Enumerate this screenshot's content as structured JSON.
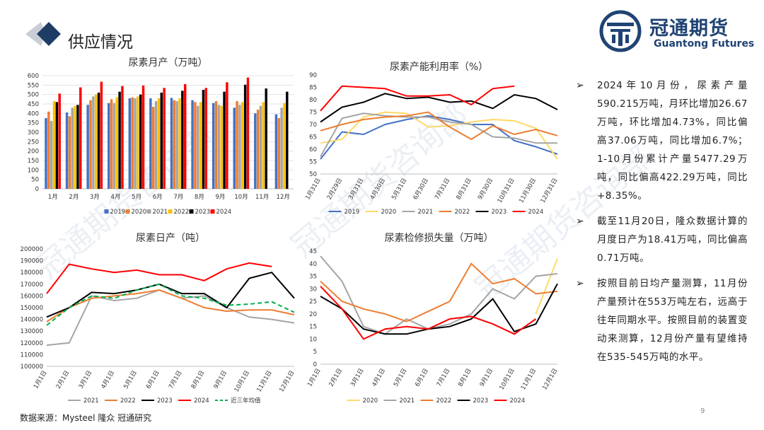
{
  "page": {
    "title": "供应情况",
    "logo_cn": "冠通期货",
    "logo_en": "Guantong Futures",
    "source_note": "数据来源：Mysteel 隆众 冠通研究",
    "page_number": "9",
    "watermark": "冠通期货咨询部",
    "brand_color": "#1f4373"
  },
  "bullets": [
    "2024年10月份，尿素产量590.215万吨，月环比增加26.67万吨，环比增加4.73%，同比偏高37.06万吨，同比增加6.7%；1-10月份累计产量5477.29万吨，同比偏高422.29万吨，同比+8.35%。",
    "截至11月20日，隆众数据计算的月度日产为18.41万吨，同比偏高0.71万吨。",
    "按照目前日均产量测算，11月份产量预计在553万吨左右，远高于往年同期水平。按照目前的装置变动来测算，12月份产量有望维持在535-545万吨的水平。"
  ],
  "chart_data": [
    {
      "id": "monthly-output",
      "type": "bar",
      "title": "尿素月产（万吨）",
      "categories": [
        "1月",
        "2月",
        "3月",
        "4月",
        "5月",
        "6月",
        "7月",
        "8月",
        "9月",
        "10月",
        "11月",
        "12月"
      ],
      "ylim": [
        0,
        600
      ],
      "yticks": [
        0,
        50,
        100,
        150,
        200,
        250,
        300,
        350,
        400,
        450,
        500,
        550,
        600
      ],
      "series": [
        {
          "name": "2019",
          "color": "#4472c4",
          "values": [
            375,
            405,
            445,
            455,
            480,
            480,
            482,
            470,
            455,
            430,
            400,
            395
          ]
        },
        {
          "name": "2020",
          "color": "#ed7d31",
          "values": [
            410,
            385,
            470,
            475,
            485,
            435,
            470,
            460,
            465,
            465,
            420,
            375
          ]
        },
        {
          "name": "2021",
          "color": "#a5a5a5",
          "values": [
            360,
            430,
            490,
            455,
            480,
            465,
            465,
            440,
            445,
            445,
            440,
            430
          ]
        },
        {
          "name": "2022",
          "color": "#ffc000",
          "values": [
            465,
            440,
            500,
            485,
            490,
            480,
            480,
            460,
            440,
            460,
            460,
            455
          ]
        },
        {
          "name": "2023",
          "color": "#000000",
          "values": [
            460,
            445,
            510,
            515,
            500,
            510,
            520,
            525,
            515,
            552,
            532,
            515
          ]
        },
        {
          "name": "2024",
          "color": "#ff0000",
          "values": [
            505,
            538,
            568,
            545,
            548,
            535,
            555,
            535,
            565,
            590,
            null,
            null
          ]
        }
      ]
    },
    {
      "id": "capacity-utilization",
      "type": "line",
      "title": "尿素产能利用率（%）",
      "categories": [
        "1月31日",
        "2月29日",
        "3月31日",
        "4月30日",
        "5月31日",
        "6月30日",
        "7月31日",
        "8月31日",
        "9月30日",
        "10月31日",
        "11月30日",
        "12月31日"
      ],
      "ylim": [
        50,
        90
      ],
      "yticks": [
        50,
        55,
        60,
        65,
        70,
        75,
        80,
        85,
        90
      ],
      "series": [
        {
          "name": "2019",
          "color": "#4472c4",
          "values": [
            56,
            67,
            66,
            70,
            72,
            73.5,
            72,
            70,
            70,
            63.5,
            61,
            58
          ]
        },
        {
          "name": "2020",
          "color": "#ffd966",
          "values": [
            62.5,
            64,
            73,
            75,
            74.5,
            69,
            69.5,
            71,
            72,
            71.5,
            68.5,
            56
          ]
        },
        {
          "name": "2021",
          "color": "#a5a5a5",
          "values": [
            57,
            72.5,
            74.5,
            73.5,
            73,
            73,
            71,
            70,
            65,
            64.5,
            62.5,
            62.5
          ]
        },
        {
          "name": "2022",
          "color": "#ed7d31",
          "values": [
            67.5,
            70,
            72,
            73,
            73.5,
            75,
            69,
            64,
            69.5,
            66,
            68,
            65.5
          ]
        },
        {
          "name": "2023",
          "color": "#000000",
          "values": [
            71,
            77,
            79,
            82.5,
            80.5,
            81,
            79,
            79.5,
            76.5,
            82,
            80.5,
            76
          ]
        },
        {
          "name": "2024",
          "color": "#ff0000",
          "values": [
            75.5,
            85.5,
            85,
            84.5,
            81.5,
            81.5,
            82,
            78,
            84.5,
            85.5,
            null,
            null
          ]
        }
      ]
    },
    {
      "id": "daily-output",
      "type": "line",
      "title": "尿素日产（吨）",
      "categories": [
        "1月1日",
        "2月1日",
        "3月1日",
        "4月1日",
        "5月1日",
        "6月1日",
        "7月1日",
        "8月1日",
        "9月1日",
        "10月1日",
        "11月1日",
        "12月1日"
      ],
      "ylim": [
        100000,
        200000
      ],
      "yticks": [
        100000,
        110000,
        120000,
        130000,
        140000,
        150000,
        160000,
        170000,
        180000,
        190000,
        200000
      ],
      "series": [
        {
          "name": "2021",
          "color": "#a5a5a5",
          "values": [
            118000,
            120000,
            160000,
            156000,
            158000,
            165000,
            158000,
            160000,
            150000,
            142000,
            140000,
            137000
          ]
        },
        {
          "name": "2022",
          "color": "#ed7d31",
          "values": [
            138000,
            150000,
            158000,
            160000,
            162000,
            165000,
            158000,
            150000,
            147000,
            148000,
            148000,
            144000
          ]
        },
        {
          "name": "2023",
          "color": "#000000",
          "values": [
            142000,
            150000,
            163000,
            162000,
            165000,
            170000,
            162000,
            162000,
            150000,
            175000,
            180000,
            158000
          ]
        },
        {
          "name": "2024",
          "color": "#ff0000",
          "values": [
            162000,
            187000,
            183000,
            180000,
            182000,
            178000,
            178000,
            173000,
            183000,
            188000,
            185000,
            null
          ]
        },
        {
          "name": "近三年均值",
          "color": "#00b050",
          "dashed": true,
          "values": [
            135000,
            150000,
            160000,
            158000,
            165000,
            170000,
            160000,
            158000,
            152000,
            153000,
            155000,
            146000
          ]
        }
      ]
    },
    {
      "id": "maintenance-loss",
      "type": "line",
      "title": "尿素检修损失量（万吨）",
      "categories": [
        "1月1日",
        "2月1日",
        "3月1日",
        "4月1日",
        "5月1日",
        "6月1日",
        "7月1日",
        "8月1日",
        "9月1日",
        "10月1日",
        "11月1日",
        "12月1日"
      ],
      "ylim": [
        0,
        45
      ],
      "yticks": [
        0,
        5,
        10,
        15,
        20,
        25,
        30,
        35,
        40,
        45
      ],
      "series": [
        {
          "name": "2020",
          "color": "#ffd966",
          "values": [
            null,
            null,
            null,
            null,
            null,
            null,
            null,
            null,
            null,
            null,
            20,
            42
          ]
        },
        {
          "name": "2021",
          "color": "#a5a5a5",
          "values": [
            43,
            33,
            15,
            12,
            18,
            14,
            16,
            20,
            30,
            26,
            35,
            36
          ]
        },
        {
          "name": "2022",
          "color": "#ed7d31",
          "values": [
            33,
            25,
            22,
            20,
            17,
            21,
            25,
            40,
            32,
            34,
            28,
            29
          ]
        },
        {
          "name": "2023",
          "color": "#000000",
          "values": [
            27,
            22,
            14,
            12,
            12,
            14,
            15,
            18,
            26,
            13,
            16,
            32
          ]
        },
        {
          "name": "2024",
          "color": "#ff0000",
          "values": [
            31,
            22,
            10,
            14,
            15,
            14,
            18,
            19,
            16,
            12,
            18,
            null
          ]
        }
      ]
    }
  ]
}
